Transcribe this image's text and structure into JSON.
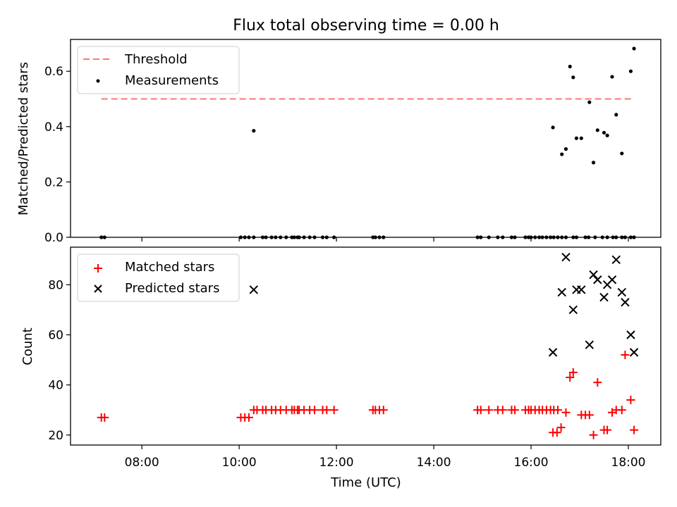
{
  "chart_data": {
    "type": "scatter",
    "title": "Flux total observing time = 0.00 h",
    "xlabel": "Time (UTC)",
    "x_tick_labels": [
      "08:00",
      "10:00",
      "12:00",
      "14:00",
      "16:00",
      "18:00"
    ],
    "x_ticks": [
      "08:00",
      "10:00",
      "12:00",
      "14:00",
      "16:00",
      "18:00"
    ],
    "xlim": [
      "06:32",
      "18:40"
    ],
    "panels": [
      {
        "ylabel": "Matched/Predicted stars",
        "ylim": [
          0,
          0.715
        ],
        "y_ticks": [
          0.0,
          0.2,
          0.4,
          0.6
        ],
        "y_tick_labels": [
          "0.0",
          "0.2",
          "0.4",
          "0.6"
        ],
        "legend_position": "upper-left",
        "threshold": {
          "name": "Threshold",
          "value": 0.5,
          "x_range": [
            "07:10",
            "18:05"
          ],
          "color": "#ff7777"
        },
        "series": [
          {
            "name": "Measurements",
            "marker": "dot",
            "color": "#000000",
            "x": [
              "07:10",
              "07:14",
              "10:02",
              "10:07",
              "10:12",
              "10:18",
              "10:29",
              "10:33",
              "10:40",
              "10:45",
              "10:51",
              "10:58",
              "11:05",
              "11:08",
              "11:12",
              "11:14",
              "11:20",
              "11:27",
              "11:33",
              "11:43",
              "11:48",
              "11:57",
              "12:45",
              "12:48",
              "12:53",
              "12:58",
              "14:54",
              "14:58",
              "15:08",
              "15:19",
              "15:25",
              "15:36",
              "15:40",
              "15:53",
              "15:57",
              "16:00",
              "16:05",
              "16:10",
              "16:14",
              "16:19",
              "16:24",
              "16:28",
              "16:33",
              "16:38",
              "16:43",
              "16:52",
              "16:56",
              "17:07",
              "17:11",
              "17:19",
              "17:28",
              "17:34",
              "17:41",
              "17:45",
              "17:52",
              "17:56",
              "18:03",
              "18:07",
              "10:18",
              "16:27",
              "16:38",
              "16:43",
              "16:48",
              "16:52",
              "16:56",
              "17:02",
              "17:12",
              "17:17",
              "17:22",
              "17:30",
              "17:34",
              "17:40",
              "17:45",
              "17:52",
              "18:03",
              "18:07"
            ],
            "y": [
              0,
              0,
              0,
              0,
              0,
              0,
              0,
              0,
              0,
              0,
              0,
              0,
              0,
              0,
              0,
              0,
              0,
              0,
              0,
              0,
              0,
              0,
              0,
              0,
              0,
              0,
              0,
              0,
              0,
              0,
              0,
              0,
              0,
              0,
              0,
              0,
              0,
              0,
              0,
              0,
              0,
              0,
              0,
              0,
              0,
              0,
              0,
              0,
              0,
              0,
              0,
              0,
              0,
              0,
              0,
              0,
              0,
              0,
              0.385,
              0.397,
              0.3,
              0.319,
              0.617,
              0.578,
              0.358,
              0.358,
              0.488,
              0.27,
              0.387,
              0.378,
              0.368,
              0.58,
              0.443,
              0.303,
              0.6,
              0.682
            ]
          }
        ]
      },
      {
        "ylabel": "Count",
        "ylim": [
          16,
          95
        ],
        "y_ticks": [
          20,
          40,
          60,
          80
        ],
        "y_tick_labels": [
          "20",
          "40",
          "60",
          "80"
        ],
        "legend_position": "upper-left",
        "series": [
          {
            "name": "Matched stars",
            "marker": "plus",
            "color": "#ff0000",
            "x": [
              "07:10",
              "07:14",
              "10:02",
              "10:07",
              "10:12",
              "10:18",
              "10:22",
              "10:29",
              "10:33",
              "10:40",
              "10:45",
              "10:51",
              "10:58",
              "11:05",
              "11:08",
              "11:12",
              "11:14",
              "11:20",
              "11:27",
              "11:33",
              "11:43",
              "11:48",
              "11:57",
              "12:45",
              "12:48",
              "12:53",
              "12:58",
              "14:54",
              "14:58",
              "15:08",
              "15:19",
              "15:25",
              "15:36",
              "15:40",
              "15:53",
              "15:57",
              "16:00",
              "16:05",
              "16:10",
              "16:14",
              "16:19",
              "16:24",
              "16:28",
              "16:33",
              "16:27",
              "16:32",
              "16:37",
              "16:43",
              "16:48",
              "16:52",
              "17:02",
              "17:07",
              "17:12",
              "17:17",
              "17:22",
              "17:30",
              "17:34",
              "17:40",
              "17:45",
              "17:52",
              "17:56",
              "18:03",
              "18:07"
            ],
            "y": [
              27,
              27,
              27,
              27,
              27,
              30,
              30,
              30,
              30,
              30,
              30,
              30,
              30,
              30,
              30,
              30,
              30,
              30,
              30,
              30,
              30,
              30,
              30,
              30,
              30,
              30,
              30,
              30,
              30,
              30,
              30,
              30,
              30,
              30,
              30,
              30,
              30,
              30,
              30,
              30,
              30,
              30,
              30,
              30,
              21,
              21,
              23,
              29,
              43,
              45,
              28,
              28,
              28,
              20,
              41,
              22,
              22,
              29,
              30,
              30,
              52,
              34,
              22
            ]
          },
          {
            "name": "Predicted stars",
            "marker": "x",
            "color": "#000000",
            "x": [
              "10:18",
              "16:27",
              "16:38",
              "16:43",
              "16:52",
              "16:56",
              "17:02",
              "17:12",
              "17:17",
              "17:22",
              "17:30",
              "17:34",
              "17:40",
              "17:45",
              "17:52",
              "17:56",
              "18:03",
              "18:07"
            ],
            "y": [
              78,
              53,
              77,
              91,
              70,
              78,
              78,
              56,
              84,
              82,
              75,
              80,
              82,
              90,
              77,
              73,
              60,
              53
            ]
          }
        ]
      }
    ]
  }
}
